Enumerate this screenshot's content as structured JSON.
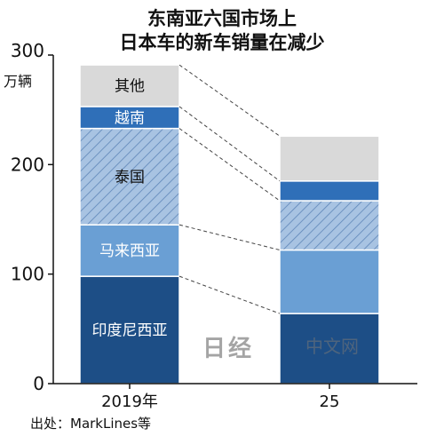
{
  "title_lines": [
    "东南亚六国市场上",
    "日本车的新车销量在减少"
  ],
  "unit_label": "万辆",
  "source_note": "出处：MarkLines等",
  "watermark": {
    "logo": "日经",
    "text": "中文网"
  },
  "chart_data": {
    "type": "bar",
    "stacked": true,
    "categories": [
      "2019年",
      "25"
    ],
    "ylim": [
      0,
      300
    ],
    "yticks": [
      0,
      100,
      200,
      300
    ],
    "series": [
      {
        "name": "印度尼西亚",
        "values": [
          98,
          64
        ],
        "color": "#1d4e86",
        "pattern": "solid",
        "label_color": "#ffffff"
      },
      {
        "name": "马来西亚",
        "values": [
          47,
          58
        ],
        "color": "#6a9fd4",
        "pattern": "solid",
        "label_color": "#ffffff"
      },
      {
        "name": "泰国",
        "values": [
          88,
          45
        ],
        "color": "#a8c3e2",
        "pattern": "hatch",
        "label_color": "#111111"
      },
      {
        "name": "越南",
        "values": [
          20,
          18
        ],
        "color": "#2f6fb8",
        "pattern": "solid",
        "label_color": "#ffffff"
      },
      {
        "name": "其他",
        "values": [
          38,
          41
        ],
        "color": "#d9d9d9",
        "pattern": "solid",
        "label_color": "#111111"
      }
    ],
    "grid": false,
    "legend": "inline labels on first bar"
  }
}
